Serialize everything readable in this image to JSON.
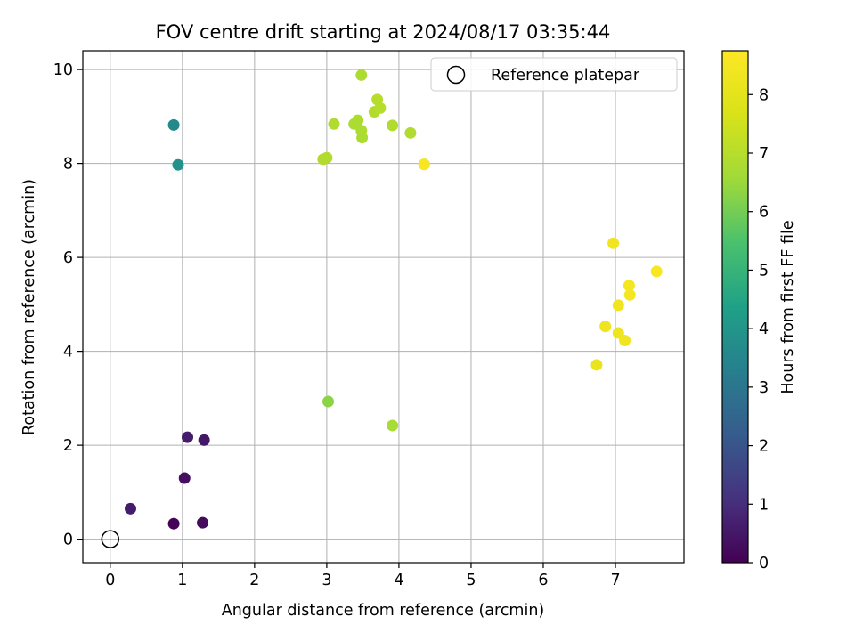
{
  "chart_data": {
    "type": "scatter",
    "title": "FOV centre drift starting at 2024/08/17 03:35:44",
    "xlabel": "Angular distance from reference (arcmin)",
    "ylabel": "Rotation from reference (arcmin)",
    "xlim": [
      -0.38,
      7.95
    ],
    "ylim": [
      -0.5,
      10.4
    ],
    "xticks": [
      "0",
      "1",
      "2",
      "3",
      "4",
      "5",
      "6",
      "7"
    ],
    "yticks": [
      "0",
      "2",
      "4",
      "6",
      "8",
      "10"
    ],
    "grid": true,
    "legend": {
      "position": "top-right",
      "entries": [
        "Reference platepar"
      ]
    },
    "reference_point": {
      "x": 0,
      "y": 0
    },
    "colorbar": {
      "label": "Hours from first FF file",
      "range": [
        0,
        8.75
      ],
      "ticks": [
        "0",
        "1",
        "2",
        "3",
        "4",
        "5",
        "6",
        "7",
        "8"
      ],
      "colormap": "viridis"
    },
    "points": [
      {
        "x": 0.88,
        "y": 0.33,
        "hours": 0.1
      },
      {
        "x": 1.28,
        "y": 0.35,
        "hours": 0.2
      },
      {
        "x": 1.03,
        "y": 1.3,
        "hours": 0.3
      },
      {
        "x": 0.28,
        "y": 0.65,
        "hours": 0.6
      },
      {
        "x": 1.07,
        "y": 2.17,
        "hours": 0.6
      },
      {
        "x": 1.3,
        "y": 2.11,
        "hours": 0.5
      },
      {
        "x": 0.88,
        "y": 8.82,
        "hours": 3.6
      },
      {
        "x": 0.94,
        "y": 7.97,
        "hours": 3.9
      },
      {
        "x": 3.02,
        "y": 2.93,
        "hours": 6.3
      },
      {
        "x": 3.91,
        "y": 2.42,
        "hours": 6.7
      },
      {
        "x": 3.48,
        "y": 9.88,
        "hours": 6.8
      },
      {
        "x": 2.95,
        "y": 8.09,
        "hours": 6.9
      },
      {
        "x": 3.0,
        "y": 8.12,
        "hours": 6.9
      },
      {
        "x": 3.1,
        "y": 8.84,
        "hours": 6.9
      },
      {
        "x": 3.38,
        "y": 8.84,
        "hours": 6.8
      },
      {
        "x": 3.43,
        "y": 8.92,
        "hours": 6.8
      },
      {
        "x": 3.48,
        "y": 8.7,
        "hours": 6.8
      },
      {
        "x": 3.49,
        "y": 8.55,
        "hours": 6.8
      },
      {
        "x": 3.66,
        "y": 9.1,
        "hours": 6.9
      },
      {
        "x": 3.7,
        "y": 9.36,
        "hours": 7.0
      },
      {
        "x": 3.74,
        "y": 9.18,
        "hours": 7.0
      },
      {
        "x": 3.91,
        "y": 8.81,
        "hours": 6.9
      },
      {
        "x": 4.16,
        "y": 8.65,
        "hours": 6.9
      },
      {
        "x": 4.35,
        "y": 7.98,
        "hours": 6.8
      },
      {
        "x": 4.35,
        "y": 7.98,
        "hours": 8.6
      },
      {
        "x": 6.97,
        "y": 6.3,
        "hours": 8.4
      },
      {
        "x": 7.57,
        "y": 5.7,
        "hours": 8.6
      },
      {
        "x": 7.19,
        "y": 5.4,
        "hours": 8.5
      },
      {
        "x": 7.2,
        "y": 5.2,
        "hours": 8.5
      },
      {
        "x": 7.04,
        "y": 4.98,
        "hours": 8.4
      },
      {
        "x": 6.86,
        "y": 4.53,
        "hours": 8.3
      },
      {
        "x": 7.04,
        "y": 4.39,
        "hours": 8.3
      },
      {
        "x": 7.13,
        "y": 4.23,
        "hours": 8.4
      },
      {
        "x": 6.74,
        "y": 3.71,
        "hours": 8.2
      }
    ]
  }
}
